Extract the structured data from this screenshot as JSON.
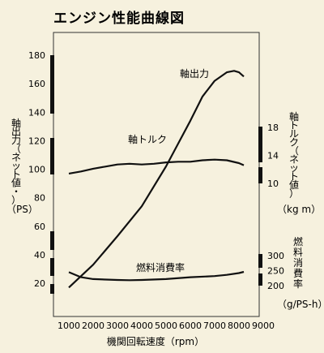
{
  "chart_data": {
    "type": "line",
    "title": "エンジン性能曲線図",
    "xlabel": "機関回転速度（rpm）",
    "xlim": [
      1000,
      9000
    ],
    "x_ticks": [
      "1000",
      "2000",
      "3000",
      "4000",
      "5000",
      "6000",
      "7000",
      "8000",
      "9000"
    ],
    "left_axis": {
      "label": "軸出力（ネット値・）",
      "unit": "（PS）",
      "ticks": [
        "20",
        "40",
        "60",
        "80",
        "100",
        "120",
        "140",
        "160",
        "180"
      ],
      "ylim": [
        10,
        190
      ]
    },
    "right_axis_torque": {
      "label": "軸トルク（ネット値）",
      "unit": "（kg m）",
      "ticks": [
        "10",
        "14",
        "18"
      ]
    },
    "right_axis_fuel": {
      "label": "燃料消費率",
      "unit": "（g/PS-h）",
      "ticks": [
        "200",
        "250",
        "300"
      ]
    },
    "series": [
      {
        "name": "軸出力",
        "axis": "power",
        "x": [
          1000,
          2000,
          3000,
          4000,
          5000,
          5500,
          6000,
          6500,
          7000,
          7500,
          7800,
          8000,
          8200
        ],
        "y": [
          17,
          33,
          53,
          74,
          102,
          118,
          134,
          151,
          162,
          168,
          169,
          168,
          165
        ]
      },
      {
        "name": "軸トルク",
        "axis": "torque",
        "x": [
          1000,
          1500,
          2000,
          2500,
          3000,
          3500,
          4000,
          4500,
          5000,
          5500,
          6000,
          6500,
          7000,
          7500,
          8000,
          8200
        ],
        "y": [
          11.4,
          11.7,
          12.1,
          12.4,
          12.7,
          12.8,
          12.7,
          12.8,
          13.0,
          13.1,
          13.1,
          13.3,
          13.4,
          13.3,
          12.9,
          12.6
        ]
      },
      {
        "name": "燃料消費率",
        "axis": "fuel",
        "x": [
          1000,
          1500,
          2000,
          3000,
          3500,
          4000,
          5000,
          6000,
          7000,
          7500,
          8000,
          8200
        ],
        "y": [
          245,
          228,
          222,
          219,
          218,
          219,
          222,
          228,
          232,
          236,
          242,
          246
        ]
      }
    ]
  }
}
